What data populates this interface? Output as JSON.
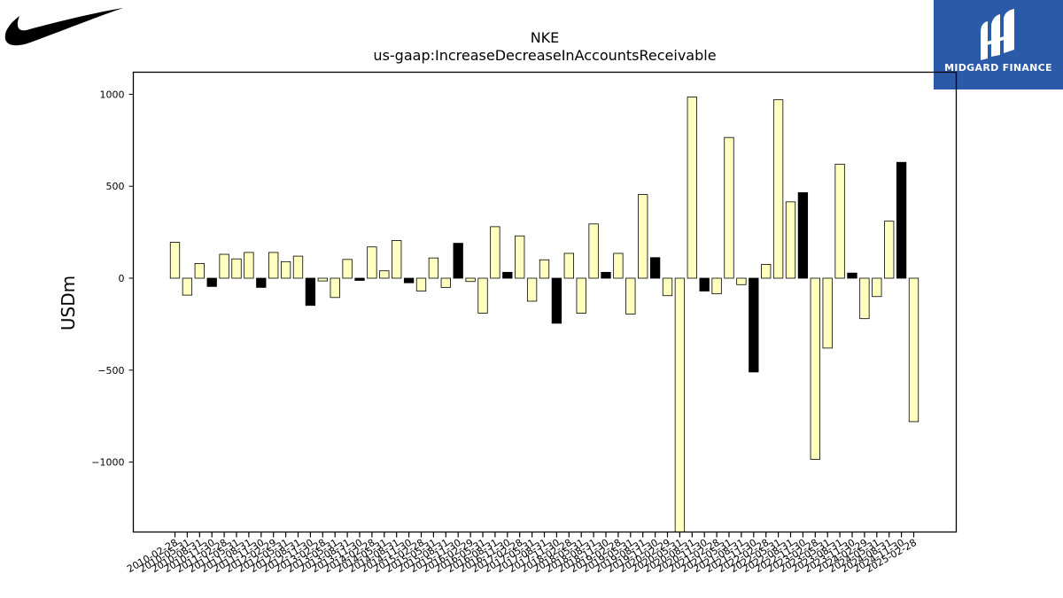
{
  "brand": {
    "left_logo": "nike-swoosh-logo",
    "right_logo_text": "MIDGARD FINANCE",
    "right_logo_color": "#2b5aa8"
  },
  "chart_data": {
    "type": "bar",
    "title": "NKE",
    "subtitle": "us-gaap:IncreaseDecreaseInAccountsReceivable",
    "xlabel": "",
    "ylabel": "USDm",
    "ylim": [
      -1380,
      1120
    ],
    "yticks": [
      1000,
      500,
      0,
      -500,
      -1000
    ],
    "ytick_labels": [
      "1000",
      "500",
      "0",
      "−500",
      "−1000"
    ],
    "grid": false,
    "legend": "none",
    "colors": {
      "regular": "#ffffc0",
      "highlight": "#000000",
      "edge": "#000000"
    },
    "categories": [
      "2010-02-28",
      "2010-05-31",
      "2010-08-31",
      "2010-11-30",
      "2011-02-28",
      "2011-05-31",
      "2011-08-31",
      "2011-11-30",
      "2012-02-29",
      "2012-05-31",
      "2012-08-31",
      "2012-11-30",
      "2013-02-28",
      "2013-05-31",
      "2013-08-31",
      "2013-11-30",
      "2014-02-28",
      "2014-05-31",
      "2014-08-31",
      "2014-11-30",
      "2015-02-28",
      "2015-05-31",
      "2015-08-31",
      "2015-11-30",
      "2016-02-29",
      "2016-05-31",
      "2016-08-31",
      "2016-11-30",
      "2017-02-28",
      "2017-05-31",
      "2017-08-31",
      "2017-11-30",
      "2018-02-28",
      "2018-05-31",
      "2018-08-31",
      "2018-11-30",
      "2019-02-28",
      "2019-05-31",
      "2019-08-31",
      "2019-11-30",
      "2020-02-29",
      "2020-05-31",
      "2020-08-31",
      "2020-11-30",
      "2021-02-28",
      "2021-05-31",
      "2021-08-31",
      "2021-11-30",
      "2022-02-28",
      "2022-05-31",
      "2022-08-31",
      "2022-11-30",
      "2023-02-28",
      "2023-05-31",
      "2023-08-31",
      "2023-11-30",
      "2024-02-29",
      "2024-05-31",
      "2024-08-31",
      "2024-11-30",
      "2025-02-28"
    ],
    "values": [
      195,
      -92,
      80,
      -45,
      130,
      105,
      140,
      -50,
      140,
      90,
      120,
      -148,
      -15,
      -105,
      102,
      -12,
      170,
      40,
      205,
      -25,
      -70,
      110,
      -50,
      190,
      -18,
      -190,
      280,
      32,
      230,
      -125,
      100,
      -245,
      135,
      -190,
      295,
      32,
      135,
      -195,
      455,
      112,
      -95,
      -1380,
      985,
      -70,
      -85,
      765,
      -35,
      -510,
      75,
      970,
      415,
      465,
      -985,
      -380,
      620,
      28,
      -220,
      -100,
      310,
      630,
      -780
    ],
    "highlight": [
      false,
      false,
      false,
      true,
      false,
      false,
      false,
      true,
      false,
      false,
      false,
      true,
      false,
      false,
      false,
      true,
      false,
      false,
      false,
      true,
      false,
      false,
      false,
      true,
      false,
      false,
      false,
      true,
      false,
      false,
      false,
      true,
      false,
      false,
      false,
      true,
      false,
      false,
      false,
      true,
      false,
      false,
      false,
      true,
      false,
      false,
      false,
      true,
      false,
      false,
      false,
      true,
      false,
      false,
      false,
      true,
      false,
      false,
      false,
      true,
      false
    ]
  }
}
